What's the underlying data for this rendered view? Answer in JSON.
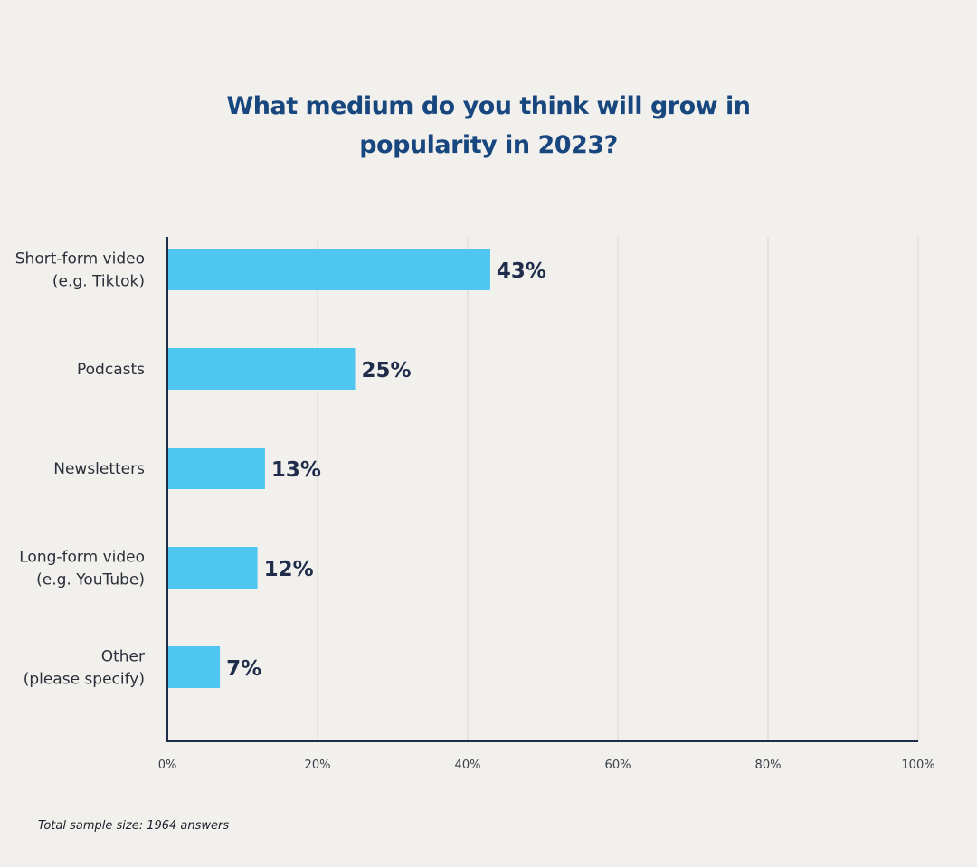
{
  "chart_data": {
    "type": "bar",
    "orientation": "horizontal",
    "title": "What medium do you think will grow in popularity in 2023?",
    "title_lines": [
      "What medium do you think will grow in",
      "popularity in 2023?"
    ],
    "categories": [
      [
        "Short-form video",
        "(e.g. Tiktok)"
      ],
      [
        "Podcasts"
      ],
      [
        "Newsletters"
      ],
      [
        "Long-form video",
        "(e.g. YouTube)"
      ],
      [
        "Other",
        "(please specify)"
      ]
    ],
    "values": [
      43,
      25,
      13,
      12,
      7
    ],
    "value_labels": [
      "43%",
      "25%",
      "13%",
      "12%",
      "7%"
    ],
    "xlim": [
      0,
      100
    ],
    "xticks": [
      "0%",
      "20%",
      "40%",
      "60%",
      "80%",
      "100%"
    ],
    "grid": true,
    "bar_color": "#4fc6f0",
    "label_color": "#1f2d4a"
  },
  "footnote": "Total sample size: 1964 answers"
}
